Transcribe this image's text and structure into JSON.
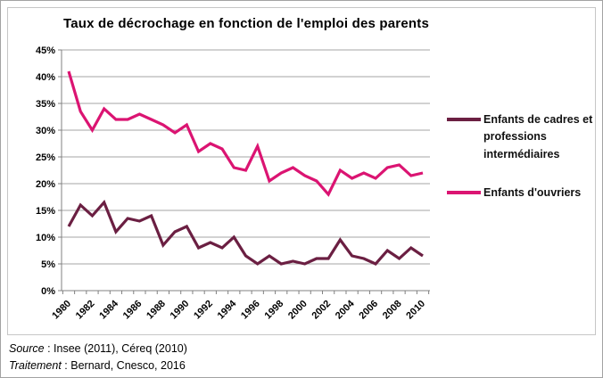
{
  "chart_data": {
    "type": "line",
    "title": "Taux de décrochage en fonction de l'emploi des parents",
    "xlabel": "",
    "ylabel": "",
    "ylim": [
      0,
      45
    ],
    "y_step": 5,
    "grid": true,
    "legend_position": "right",
    "x": [
      1980,
      1981,
      1982,
      1983,
      1984,
      1985,
      1986,
      1987,
      1988,
      1989,
      1990,
      1991,
      1992,
      1993,
      1994,
      1995,
      1996,
      1997,
      1998,
      1999,
      2000,
      2001,
      2002,
      2003,
      2004,
      2005,
      2006,
      2007,
      2008,
      2009,
      2010
    ],
    "x_tick_labels": [
      "1980",
      "1982",
      "1984",
      "1986",
      "1988",
      "1990",
      "1992",
      "1994",
      "1996",
      "1998",
      "2000",
      "2002",
      "2004",
      "2006",
      "2008",
      "2010"
    ],
    "y_tick_labels": [
      "0%",
      "5%",
      "10%",
      "15%",
      "20%",
      "25%",
      "30%",
      "35%",
      "40%",
      "45%"
    ],
    "series": [
      {
        "name": "Enfants de cadres et professions intermédiaires",
        "color": "#6B1F42",
        "values": [
          12,
          16,
          14,
          16.5,
          11,
          13.5,
          13,
          14,
          8.5,
          11,
          12,
          8,
          9,
          8,
          10,
          6.5,
          5,
          6.5,
          5,
          5.5,
          5,
          6,
          6,
          9.5,
          6.5,
          6,
          5,
          7.5,
          6,
          8,
          6.5
        ]
      },
      {
        "name": "Enfants d'ouvriers",
        "color": "#DB1472",
        "values": [
          41,
          33.5,
          30,
          34,
          32,
          32,
          33,
          32,
          31,
          29.5,
          31,
          26,
          27.5,
          26.5,
          23,
          22.5,
          27,
          20.5,
          22,
          23,
          21.5,
          20.5,
          18,
          22.5,
          21,
          22,
          21,
          23,
          23.5,
          21.5,
          22
        ]
      }
    ]
  },
  "legend": {
    "items": [
      {
        "label": "Enfants de cadres et professions intermédiaires"
      },
      {
        "label": "Enfants d'ouvriers"
      }
    ]
  },
  "footer": {
    "source_label": "Source",
    "source_text": " : Insee (2011), Céreq (2010)",
    "treatment_label": "Traitement",
    "treatment_text": " : Bernard, Cnesco, 2016"
  }
}
